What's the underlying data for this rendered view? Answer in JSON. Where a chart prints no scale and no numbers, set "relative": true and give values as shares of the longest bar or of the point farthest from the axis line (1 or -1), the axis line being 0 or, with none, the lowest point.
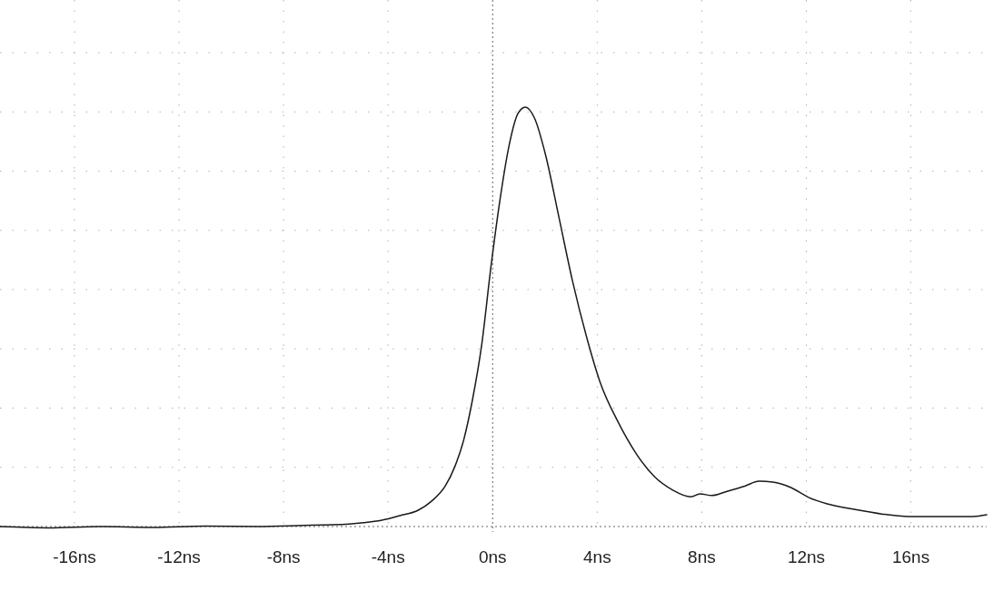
{
  "chart_data": {
    "type": "line",
    "relative": true,
    "grid": true,
    "line_style": "solid",
    "marker": "none",
    "xlim": [
      -18.85,
      18.9
    ],
    "ref_lines": [
      {
        "axis": "x",
        "value": 0,
        "color": "#666666",
        "line_style": "dotted"
      }
    ],
    "xticks": [
      {
        "value": -16,
        "label": "-16ns"
      },
      {
        "value": -12,
        "label": "-12ns"
      },
      {
        "value": -8,
        "label": "-8ns"
      },
      {
        "value": -4,
        "label": "-4ns"
      },
      {
        "value": 0,
        "label": "0ns"
      },
      {
        "value": 4,
        "label": "4ns"
      },
      {
        "value": 8,
        "label": "8ns"
      },
      {
        "value": 12,
        "label": "12ns"
      },
      {
        "value": 16,
        "label": "16ns"
      }
    ],
    "series": [
      {
        "color": "#1a1a1a",
        "x": [
          -18.85,
          -17,
          -15,
          -13,
          -11,
          -9,
          -7.5,
          -6.5,
          -5.5,
          -4.94,
          -4.24,
          -3.55,
          -2.85,
          -2.33,
          -1.81,
          -1.46,
          -1.11,
          -0.77,
          -0.42,
          -0.07,
          0.28,
          0.63,
          0.97,
          1.25,
          1.6,
          2.02,
          2.54,
          3.06,
          3.58,
          4.1,
          4.8,
          5.5,
          6.19,
          6.89,
          7.58,
          7.93,
          8.38,
          8.97,
          9.67,
          10.19,
          10.71,
          11.41,
          12.1,
          12.8,
          13.84,
          14.89,
          15.93,
          17.32,
          18.37,
          18.9
        ],
        "values": [
          0,
          -0.003,
          0,
          -0.002,
          0.001,
          0,
          0.002,
          0.004,
          0.006,
          0.009,
          0.015,
          0.026,
          0.039,
          0.061,
          0.097,
          0.141,
          0.206,
          0.303,
          0.433,
          0.617,
          0.779,
          0.909,
          0.985,
          1,
          0.974,
          0.887,
          0.736,
          0.584,
          0.455,
          0.346,
          0.249,
          0.173,
          0.119,
          0.087,
          0.071,
          0.078,
          0.074,
          0.084,
          0.097,
          0.108,
          0.106,
          0.093,
          0.069,
          0.054,
          0.041,
          0.03,
          0.024,
          0.024,
          0.024,
          0.028
        ]
      }
    ]
  }
}
